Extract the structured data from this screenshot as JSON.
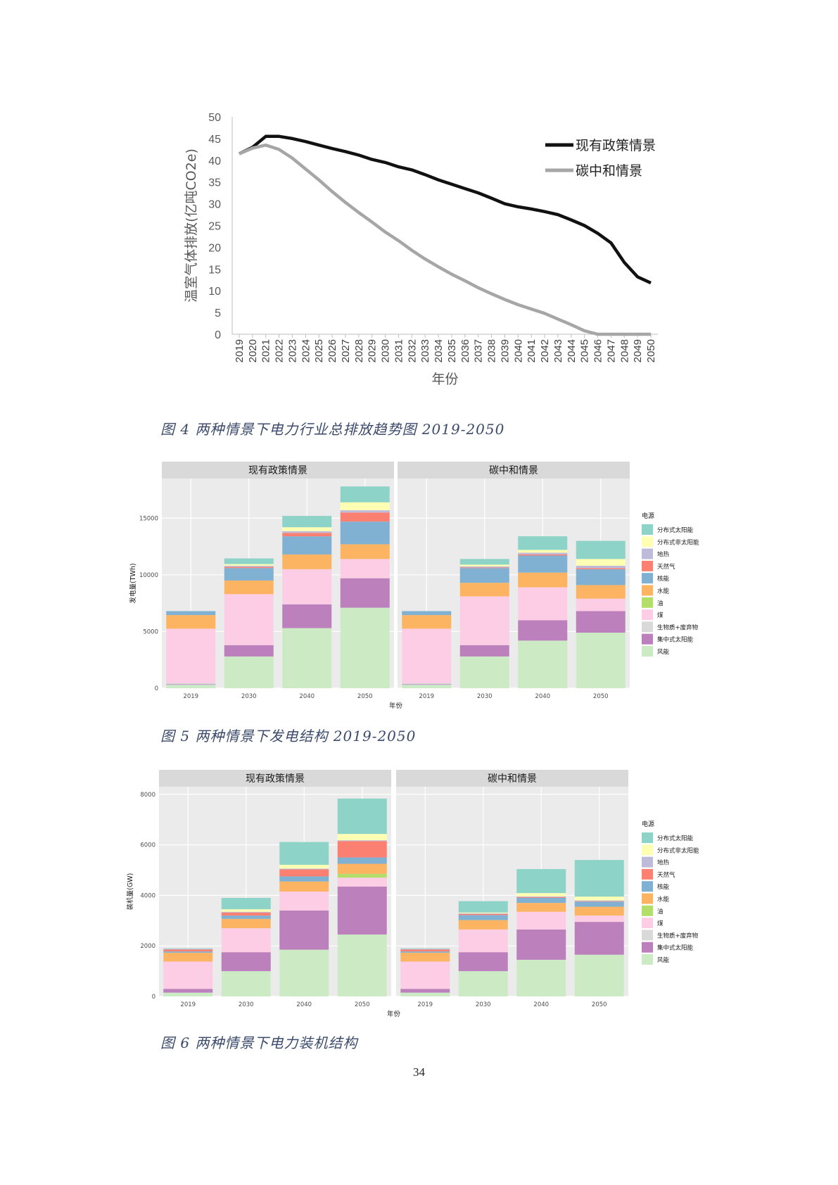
{
  "figure4": {
    "caption": "图 4 两种情景下电力行业总排放趋势图 2019-2050",
    "chart_data": {
      "type": "line",
      "xlabel": "年份",
      "ylabel": "温室气体排放(亿吨CO2e)",
      "ylim": [
        0,
        50
      ],
      "yticks": [
        0,
        5,
        10,
        15,
        20,
        25,
        30,
        35,
        40,
        45,
        50
      ],
      "x": [
        2019,
        2020,
        2021,
        2022,
        2023,
        2024,
        2025,
        2026,
        2027,
        2028,
        2029,
        2030,
        2031,
        2032,
        2033,
        2034,
        2035,
        2036,
        2037,
        2038,
        2039,
        2040,
        2041,
        2042,
        2043,
        2044,
        2045,
        2046,
        2047,
        2048,
        2049,
        2050
      ],
      "series": [
        {
          "name": "现有政策情景",
          "color": "#111111",
          "values": [
            41.5,
            43.0,
            45.5,
            45.5,
            45.0,
            44.3,
            43.5,
            42.7,
            42.0,
            41.2,
            40.2,
            39.5,
            38.5,
            37.8,
            36.7,
            35.5,
            34.5,
            33.5,
            32.5,
            31.3,
            30.0,
            29.3,
            28.8,
            28.2,
            27.5,
            26.3,
            25.0,
            23.2,
            21.0,
            16.5,
            13.2,
            11.8
          ]
        },
        {
          "name": "碳中和情景",
          "color": "#a6a6a6",
          "values": [
            41.5,
            42.8,
            43.5,
            42.5,
            40.5,
            38.0,
            35.5,
            32.8,
            30.3,
            28.0,
            25.8,
            23.5,
            21.5,
            19.3,
            17.3,
            15.5,
            13.8,
            12.3,
            10.7,
            9.3,
            8.0,
            6.8,
            5.8,
            4.8,
            3.5,
            2.2,
            0.8,
            0.0,
            0.0,
            0.0,
            0.0,
            0.0
          ]
        }
      ]
    }
  },
  "figure5": {
    "caption": "图 5 两种情景下发电结构 2019-2050",
    "chart_data": {
      "type": "bar",
      "stacked": true,
      "xlabel": "年份",
      "ylabel": "发电量(TWh)",
      "ylim": [
        0,
        18500
      ],
      "yticks": [
        0,
        5000,
        10000,
        15000
      ],
      "categories": [
        "2019",
        "2030",
        "2040",
        "2050"
      ],
      "legend_title": "电源",
      "legend_position": "right",
      "legend": [
        "分布式太阳能",
        "分布式非太阳能",
        "地热",
        "天然气",
        "核能",
        "水能",
        "油",
        "煤",
        "生物质+废弃物",
        "集中式太阳能",
        "风能"
      ],
      "colors": [
        "#8dd3c7",
        "#ffffb3",
        "#bebada",
        "#fb8072",
        "#80b1d3",
        "#fdb462",
        "#b3de69",
        "#fccde5",
        "#d9d9d9",
        "#bc80bd",
        "#ccebc5"
      ],
      "panels": [
        {
          "title": "现有政策情景",
          "series": [
            {
              "name": "风能",
              "values": [
                300,
                2800,
                5300,
                7100
              ]
            },
            {
              "name": "集中式太阳能",
              "values": [
                50,
                1000,
                2100,
                2600
              ]
            },
            {
              "name": "生物质+废弃物",
              "values": [
                100,
                0,
                0,
                0
              ]
            },
            {
              "name": "煤",
              "values": [
                4800,
                4500,
                3100,
                1700
              ]
            },
            {
              "name": "油",
              "values": [
                0,
                0,
                0,
                0
              ]
            },
            {
              "name": "水能",
              "values": [
                1200,
                1200,
                1300,
                1300
              ]
            },
            {
              "name": "核能",
              "values": [
                350,
                1100,
                1600,
                2000
              ]
            },
            {
              "name": "天然气",
              "values": [
                0,
                100,
                300,
                800
              ]
            },
            {
              "name": "地热",
              "values": [
                0,
                100,
                150,
                200
              ]
            },
            {
              "name": "分布式非太阳能",
              "values": [
                0,
                150,
                350,
                700
              ]
            },
            {
              "name": "分布式太阳能",
              "values": [
                0,
                500,
                1000,
                1400
              ]
            }
          ]
        },
        {
          "title": "碳中和情景",
          "series": [
            {
              "name": "风能",
              "values": [
                300,
                2800,
                4200,
                4900
              ]
            },
            {
              "name": "集中式太阳能",
              "values": [
                50,
                1000,
                1800,
                1900
              ]
            },
            {
              "name": "生物质+废弃物",
              "values": [
                100,
                0,
                0,
                0
              ]
            },
            {
              "name": "煤",
              "values": [
                4800,
                4300,
                2900,
                1100
              ]
            },
            {
              "name": "油",
              "values": [
                0,
                0,
                0,
                0
              ]
            },
            {
              "name": "水能",
              "values": [
                1200,
                1200,
                1300,
                1200
              ]
            },
            {
              "name": "核能",
              "values": [
                350,
                1300,
                1500,
                1400
              ]
            },
            {
              "name": "天然气",
              "values": [
                0,
                50,
                100,
                100
              ]
            },
            {
              "name": "地热",
              "values": [
                0,
                100,
                150,
                200
              ]
            },
            {
              "name": "分布式非太阳能",
              "values": [
                0,
                150,
                250,
                600
              ]
            },
            {
              "name": "分布式太阳能",
              "values": [
                0,
                500,
                1200,
                1600
              ]
            }
          ]
        }
      ]
    }
  },
  "figure6": {
    "caption": "图 6 两种情景下电力装机结构",
    "chart_data": {
      "type": "bar",
      "stacked": true,
      "xlabel": "年份",
      "ylabel": "装机量(GW)",
      "ylim": [
        0,
        8300
      ],
      "yticks": [
        0,
        2000,
        4000,
        6000,
        8000
      ],
      "categories": [
        "2019",
        "2030",
        "2040",
        "2050"
      ],
      "legend_title": "电源",
      "legend_position": "right",
      "legend": [
        "分布式太阳能",
        "分布式非太阳能",
        "地热",
        "天然气",
        "核能",
        "水能",
        "油",
        "煤",
        "生物质+废弃物",
        "集中式太阳能",
        "风能"
      ],
      "colors": [
        "#8dd3c7",
        "#ffffb3",
        "#bebada",
        "#fb8072",
        "#80b1d3",
        "#fdb462",
        "#b3de69",
        "#fccde5",
        "#d9d9d9",
        "#bc80bd",
        "#ccebc5"
      ],
      "panels": [
        {
          "title": "现有政策情景",
          "series": [
            {
              "name": "风能",
              "values": [
                150,
                1000,
                1850,
                2450
              ]
            },
            {
              "name": "集中式太阳能",
              "values": [
                150,
                750,
                1550,
                1900
              ]
            },
            {
              "name": "生物质+废弃物",
              "values": [
                0,
                0,
                0,
                0
              ]
            },
            {
              "name": "煤",
              "values": [
                1080,
                950,
                750,
                350
              ]
            },
            {
              "name": "油",
              "values": [
                0,
                0,
                0,
                150
              ]
            },
            {
              "name": "水能",
              "values": [
                350,
                370,
                400,
                400
              ]
            },
            {
              "name": "核能",
              "values": [
                50,
                130,
                200,
                250
              ]
            },
            {
              "name": "天然气",
              "values": [
                80,
                120,
                280,
                650
              ]
            },
            {
              "name": "地热",
              "values": [
                20,
                30,
                30,
                30
              ]
            },
            {
              "name": "分布式非太阳能",
              "values": [
                0,
                100,
                150,
                250
              ]
            },
            {
              "name": "分布式太阳能",
              "values": [
                20,
                450,
                900,
                1400
              ]
            }
          ]
        },
        {
          "title": "碳中和情景",
          "series": [
            {
              "name": "风能",
              "values": [
                150,
                1000,
                1450,
                1650
              ]
            },
            {
              "name": "集中式太阳能",
              "values": [
                150,
                750,
                1200,
                1300
              ]
            },
            {
              "name": "生物质+废弃物",
              "values": [
                0,
                0,
                0,
                0
              ]
            },
            {
              "name": "煤",
              "values": [
                1080,
                900,
                700,
                250
              ]
            },
            {
              "name": "油",
              "values": [
                0,
                0,
                0,
                0
              ]
            },
            {
              "name": "水能",
              "values": [
                350,
                370,
                350,
                350
              ]
            },
            {
              "name": "核能",
              "values": [
                50,
                200,
                200,
                200
              ]
            },
            {
              "name": "天然气",
              "values": [
                80,
                40,
                30,
                20
              ]
            },
            {
              "name": "地热",
              "values": [
                20,
                30,
                30,
                30
              ]
            },
            {
              "name": "分布式非太阳能",
              "values": [
                0,
                30,
                130,
                150
              ]
            },
            {
              "name": "分布式太阳能",
              "values": [
                20,
                450,
                950,
                1450
              ]
            }
          ]
        }
      ]
    }
  },
  "page_number": "34"
}
